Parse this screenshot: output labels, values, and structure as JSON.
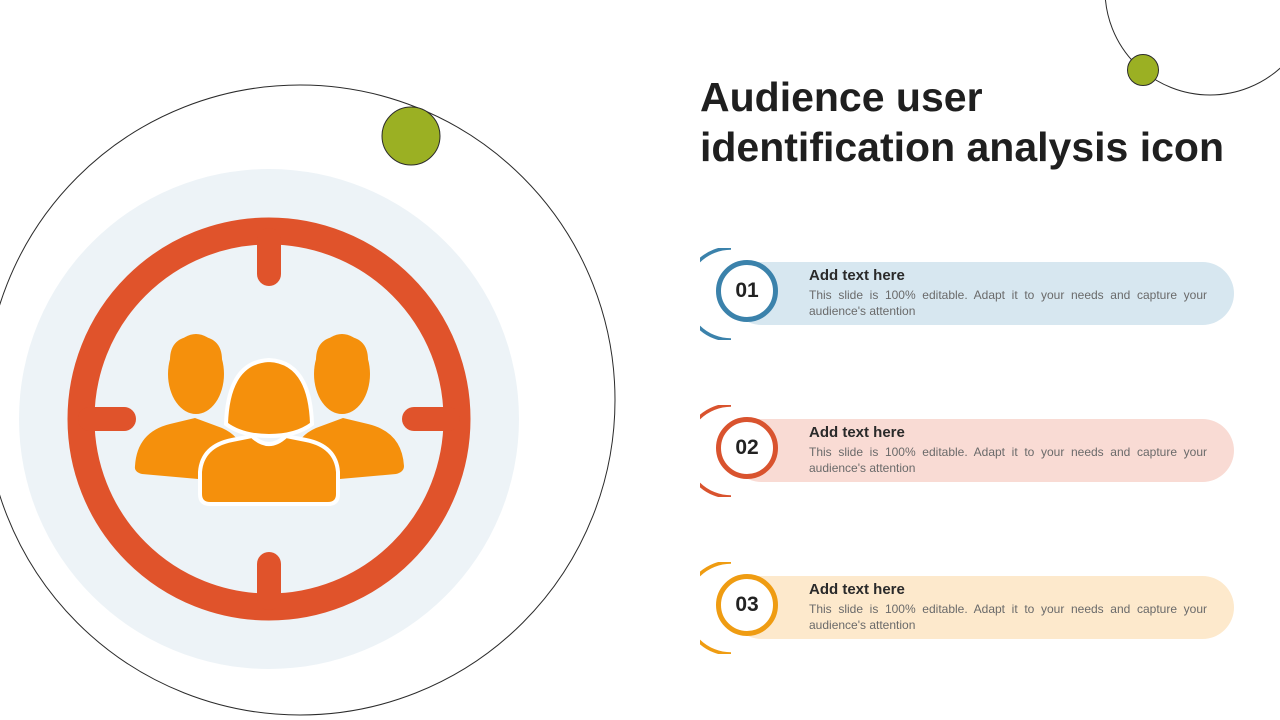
{
  "title": {
    "line1": "Audience user",
    "line2": "identification analysis icon"
  },
  "colors": {
    "accent_green": "#9bb023",
    "target_red": "#e0532b",
    "people_orange": "#f5900c",
    "backdrop_light_blue": "#edf3f7"
  },
  "icon": {
    "name": "audience-target-icon"
  },
  "items": [
    {
      "number": "01",
      "heading": "Add text here",
      "description": "This slide is 100% editable. Adapt it to your needs and capture your audience's attention",
      "pill_color": "#d7e7f0",
      "ring_color": "#3b82ab"
    },
    {
      "number": "02",
      "heading": "Add text here",
      "description": "This slide is 100% editable. Adapt it to your needs and capture your audience's attention",
      "pill_color": "#f9dbd4",
      "ring_color": "#d9532e"
    },
    {
      "number": "03",
      "heading": "Add text here",
      "description": "This slide is 100% editable. Adapt it to your needs and capture your audience's attention",
      "pill_color": "#fde9cc",
      "ring_color": "#ef9c12"
    }
  ]
}
